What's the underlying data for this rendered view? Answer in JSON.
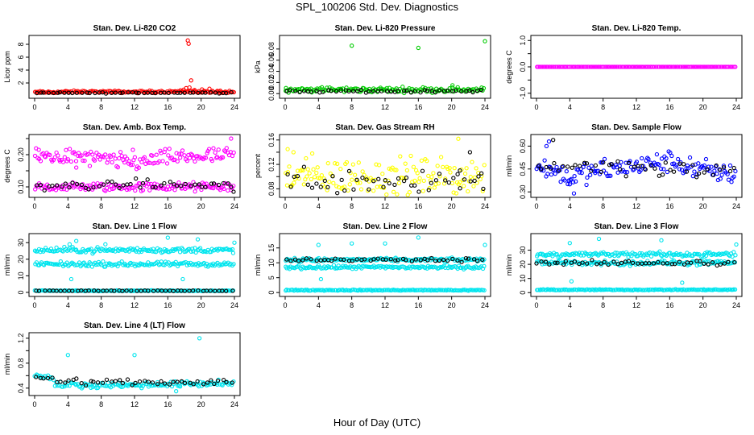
{
  "figure": {
    "title": "SPL_100206  Std. Dev. Diagnostics",
    "xlabel": "Hour of Day (UTC)"
  },
  "colors": {
    "primary_points": "#000000",
    "li820": "#ff0000",
    "pressure": "#00cc00",
    "temperature": "#ff00ff",
    "rh": "#ffff00",
    "sample_flow": "#0000ff",
    "line_flow": "#00e5ee"
  },
  "chart_data": [
    {
      "type": "scatter",
      "title": "Stan. Dev. Li-820 CO2",
      "ylabel": "Licor ppm",
      "xlim": [
        0,
        24
      ],
      "ylim": [
        0,
        9
      ],
      "xticks": [
        0,
        4,
        8,
        12,
        16,
        20,
        24
      ],
      "yticks": [
        2,
        4,
        6,
        8
      ],
      "ytick_labels": [
        "2",
        "4",
        "6",
        "8"
      ],
      "series": [
        {
          "color": "#ff0000",
          "baseline": [
            [
              0,
              0.55
            ],
            [
              6,
              0.65
            ],
            [
              12,
              0.6
            ],
            [
              18,
              0.7
            ],
            [
              24,
              0.55
            ]
          ],
          "spread": 0.15,
          "extra": [
            [
              18.4,
              8.6
            ],
            [
              18.5,
              8.1
            ],
            [
              18.2,
              1.2
            ],
            [
              18.6,
              1.3
            ],
            [
              18.8,
              2.4
            ],
            [
              19.2,
              0.9
            ],
            [
              20.1,
              1.0
            ],
            [
              21.0,
              1.1
            ],
            [
              17.9,
              0.95
            ],
            [
              22.3,
              0.8
            ]
          ]
        },
        {
          "color": "#000000",
          "baseline": [
            [
              0,
              0.45
            ],
            [
              24,
              0.5
            ]
          ],
          "spread": 0.08,
          "extra": []
        }
      ]
    },
    {
      "type": "scatter",
      "title": "Stan. Dev. Li-820 Pressure",
      "ylabel": "kPa",
      "xlim": [
        0,
        24
      ],
      "ylim": [
        -0.004,
        0.1
      ],
      "xticks": [
        0,
        4,
        8,
        12,
        16,
        20,
        24
      ],
      "yticks": [
        0,
        0.02,
        0.04,
        0.06,
        0.08
      ],
      "ytick_labels": [
        "0.00",
        "0.02",
        "0.04",
        "0.06",
        "0.08"
      ],
      "series": [
        {
          "color": "#00cc00",
          "baseline": [
            [
              0,
              0.007
            ],
            [
              24,
              0.007
            ]
          ],
          "spread": 0.004,
          "extra": [
            [
              8.0,
              0.086
            ],
            [
              16.0,
              0.082
            ],
            [
              24.0,
              0.094
            ],
            [
              20.1,
              0.015
            ],
            [
              0.1,
              0.01
            ]
          ]
        },
        {
          "color": "#000000",
          "baseline": [
            [
              0,
              0.004
            ],
            [
              24,
              0.005
            ]
          ],
          "spread": 0.002,
          "extra": []
        }
      ]
    },
    {
      "type": "scatter",
      "title": "Stan. Dev. Li-820 Temp.",
      "ylabel": "degrees C",
      "xlim": [
        0,
        24
      ],
      "ylim": [
        -1.1,
        1.1
      ],
      "xticks": [
        0,
        4,
        8,
        12,
        16,
        20,
        24
      ],
      "yticks": [
        -1,
        -0.5,
        0,
        0.5,
        1
      ],
      "ytick_labels": [
        "-1.0",
        "",
        "0.0",
        "",
        "1.0"
      ],
      "series": [
        {
          "color": "#ff00ff",
          "baseline": [
            [
              0,
              0
            ],
            [
              24,
              0
            ]
          ],
          "spread": 0,
          "extra": []
        }
      ]
    },
    {
      "type": "scatter",
      "title": "Stan. Dev. Amb. Box Temp.",
      "ylabel": "degrees C",
      "xlim": [
        0,
        24
      ],
      "ylim": [
        0.075,
        0.255
      ],
      "xticks": [
        0,
        4,
        8,
        12,
        16,
        20,
        24
      ],
      "yticks": [
        0.1,
        0.15,
        0.2,
        0.25
      ],
      "ytick_labels": [
        "0.10",
        "",
        "0.20",
        ""
      ],
      "series": [
        {
          "color": "#ff00ff",
          "baseline": [
            [
              0,
              0.195
            ],
            [
              4,
              0.195
            ],
            [
              8,
              0.185
            ],
            [
              12,
              0.175
            ],
            [
              16,
              0.19
            ],
            [
              20,
              0.195
            ],
            [
              24,
              0.195
            ]
          ],
          "spread": 0.022,
          "extra": [
            [
              0.5,
              0.215
            ],
            [
              23.6,
              0.25
            ],
            [
              11.8,
              0.215
            ],
            [
              5.0,
              0.16
            ]
          ]
        },
        {
          "color": "#ff00ff",
          "baseline": [
            [
              0,
              0.1
            ],
            [
              24,
              0.1
            ]
          ],
          "spread": 0.012,
          "extra": []
        },
        {
          "color": "#000000",
          "baseline": [
            [
              0,
              0.1
            ],
            [
              12,
              0.108
            ],
            [
              24,
              0.105
            ]
          ],
          "spread": 0.012,
          "extra": [
            [
              23.9,
              0.085
            ]
          ]
        }
      ]
    },
    {
      "type": "scatter",
      "title": "Stan. Dev. Gas Stream RH",
      "ylabel": "percent",
      "xlim": [
        0,
        24
      ],
      "ylim": [
        0.07,
        0.165
      ],
      "xticks": [
        0,
        4,
        8,
        12,
        16,
        20,
        24
      ],
      "yticks": [
        0.08,
        0.1,
        0.12,
        0.14,
        0.16
      ],
      "ytick_labels": [
        "0.08",
        "",
        "0.12",
        "",
        "0.16"
      ],
      "series": [
        {
          "color": "#ffff00",
          "baseline": [
            [
              0,
              0.1
            ],
            [
              24,
              0.1
            ]
          ],
          "spread": 0.026,
          "extra": [
            [
              0.3,
              0.145
            ],
            [
              1.0,
              0.14
            ],
            [
              20.8,
              0.162
            ],
            [
              2.5,
              0.13
            ]
          ]
        },
        {
          "color": "#000000",
          "baseline": [
            [
              0,
              0.095
            ],
            [
              24,
              0.095
            ]
          ],
          "spread": 0.02,
          "extra": [
            [
              22.2,
              0.14
            ],
            [
              21.0,
              0.11
            ],
            [
              23.8,
              0.08
            ]
          ]
        }
      ]
    },
    {
      "type": "scatter",
      "title": "Stan. Dev. Sample Flow",
      "ylabel": "ml/min",
      "xlim": [
        0,
        24
      ],
      "ylim": [
        0.28,
        0.66
      ],
      "xticks": [
        0,
        4,
        8,
        12,
        16,
        20,
        24
      ],
      "yticks": [
        0.3,
        0.45,
        0.6
      ],
      "ytick_labels": [
        "0.30",
        "0.45",
        "0.60"
      ],
      "series": [
        {
          "color": "#0000ff",
          "baseline": [
            [
              0,
              0.48
            ],
            [
              4,
              0.4
            ],
            [
              8,
              0.44
            ],
            [
              12,
              0.47
            ],
            [
              16,
              0.5
            ],
            [
              20,
              0.44
            ],
            [
              24,
              0.42
            ]
          ],
          "spread": 0.06,
          "extra": [
            [
              1.5,
              0.63
            ],
            [
              4.5,
              0.29
            ],
            [
              4.0,
              0.35
            ],
            [
              1.2,
              0.6
            ]
          ]
        },
        {
          "color": "#000000",
          "baseline": [
            [
              0,
              0.47
            ],
            [
              12,
              0.47
            ],
            [
              24,
              0.42
            ]
          ],
          "spread": 0.05,
          "extra": [
            [
              2.0,
              0.64
            ]
          ]
        }
      ]
    },
    {
      "type": "scatter",
      "title": "Stan. Dev. Line 1 Flow",
      "ylabel": "ml/min",
      "xlim": [
        0,
        24
      ],
      "ylim": [
        -1,
        34
      ],
      "xticks": [
        0,
        4,
        8,
        12,
        16,
        20,
        24
      ],
      "yticks": [
        0,
        10,
        20,
        30
      ],
      "ytick_labels": [
        "0",
        "10",
        "20",
        "30"
      ],
      "series": [
        {
          "color": "#00e5ee",
          "baseline": [
            [
              0,
              25.5
            ],
            [
              24,
              25.5
            ]
          ],
          "spread": 1.4,
          "extra": [
            [
              4.2,
              29
            ],
            [
              5.0,
              31
            ],
            [
              16.0,
              33
            ],
            [
              19.6,
              32
            ],
            [
              24.0,
              30
            ],
            [
              8.5,
              29
            ],
            [
              4.4,
              8
            ],
            [
              17.8,
              8
            ]
          ]
        },
        {
          "color": "#00e5ee",
          "baseline": [
            [
              0,
              17
            ],
            [
              24,
              17
            ]
          ],
          "spread": 1.2,
          "extra": []
        },
        {
          "color": "#00e5ee",
          "baseline": [
            [
              0,
              1
            ],
            [
              24,
              1
            ]
          ],
          "spread": 0.2,
          "extra": []
        },
        {
          "color": "#000000",
          "baseline": [
            [
              0,
              1
            ],
            [
              24,
              1
            ]
          ],
          "spread": 0.15,
          "extra": []
        }
      ]
    },
    {
      "type": "scatter",
      "title": "Stan. Dev. Line 2 Flow",
      "ylabel": "ml/min",
      "xlim": [
        0,
        24
      ],
      "ylim": [
        -0.5,
        19
      ],
      "xticks": [
        0,
        4,
        8,
        12,
        16,
        20,
        24
      ],
      "yticks": [
        0,
        5,
        10,
        15
      ],
      "ytick_labels": [
        "0",
        "5",
        "10",
        "15"
      ],
      "series": [
        {
          "color": "#00e5ee",
          "baseline": [
            [
              0,
              11
            ],
            [
              24,
              11
            ]
          ],
          "spread": 0.5,
          "extra": [
            [
              4.0,
              16
            ],
            [
              8.0,
              16.5
            ],
            [
              12.0,
              16.5
            ],
            [
              16.0,
              18.5
            ],
            [
              24.0,
              16
            ],
            [
              4.3,
              4.5
            ]
          ]
        },
        {
          "color": "#00e5ee",
          "baseline": [
            [
              0,
              8.5
            ],
            [
              24,
              8.5
            ]
          ],
          "spread": 0.5,
          "extra": []
        },
        {
          "color": "#00e5ee",
          "baseline": [
            [
              0,
              0.8
            ],
            [
              24,
              0.8
            ]
          ],
          "spread": 0.15,
          "extra": []
        },
        {
          "color": "#000000",
          "baseline": [
            [
              0,
              11
            ],
            [
              24,
              11
            ]
          ],
          "spread": 0.5,
          "extra": []
        }
      ]
    },
    {
      "type": "scatter",
      "title": "Stan. Dev. Line 3 Flow",
      "ylabel": "ml/min",
      "xlim": [
        0,
        24
      ],
      "ylim": [
        -1,
        40
      ],
      "xticks": [
        0,
        4,
        8,
        12,
        16,
        20,
        24
      ],
      "yticks": [
        0,
        10,
        20,
        30
      ],
      "ytick_labels": [
        "0",
        "10",
        "20",
        "30"
      ],
      "series": [
        {
          "color": "#00e5ee",
          "baseline": [
            [
              0,
              27
            ],
            [
              24,
              27
            ]
          ],
          "spread": 1.5,
          "extra": [
            [
              4.0,
              35
            ],
            [
              7.5,
              38
            ],
            [
              15.0,
              37
            ],
            [
              24.0,
              34
            ],
            [
              4.2,
              8
            ],
            [
              17.5,
              7
            ]
          ]
        },
        {
          "color": "#00e5ee",
          "baseline": [
            [
              0,
              21
            ],
            [
              24,
              21
            ]
          ],
          "spread": 1.5,
          "extra": []
        },
        {
          "color": "#00e5ee",
          "baseline": [
            [
              0,
              2
            ],
            [
              24,
              2
            ]
          ],
          "spread": 0.3,
          "extra": []
        },
        {
          "color": "#000000",
          "baseline": [
            [
              0,
              21
            ],
            [
              24,
              21
            ]
          ],
          "spread": 1.5,
          "extra": []
        }
      ]
    },
    {
      "type": "scatter",
      "title": "Stan. Dev. Line 4 (LT) Flow",
      "ylabel": "ml/min",
      "xlim": [
        0,
        24
      ],
      "ylim": [
        0.32,
        1.25
      ],
      "xticks": [
        0,
        4,
        8,
        12,
        16,
        20,
        24
      ],
      "yticks": [
        0.4,
        0.6,
        0.8,
        1.0,
        1.2
      ],
      "ytick_labels": [
        "0.4",
        "",
        "0.8",
        "",
        "1.2"
      ],
      "series": [
        {
          "color": "#00e5ee",
          "baseline": [
            [
              0,
              0.6
            ],
            [
              2.2,
              0.57
            ],
            [
              2.6,
              0.45
            ],
            [
              12,
              0.45
            ],
            [
              24,
              0.48
            ]
          ],
          "spread": 0.04,
          "extra": [
            [
              4.0,
              0.93
            ],
            [
              12.0,
              0.93
            ],
            [
              19.8,
              1.2
            ],
            [
              17.0,
              0.35
            ]
          ]
        },
        {
          "color": "#000000",
          "baseline": [
            [
              0,
              0.58
            ],
            [
              2.5,
              0.5
            ],
            [
              24,
              0.5
            ]
          ],
          "spread": 0.04,
          "extra": []
        }
      ]
    }
  ]
}
